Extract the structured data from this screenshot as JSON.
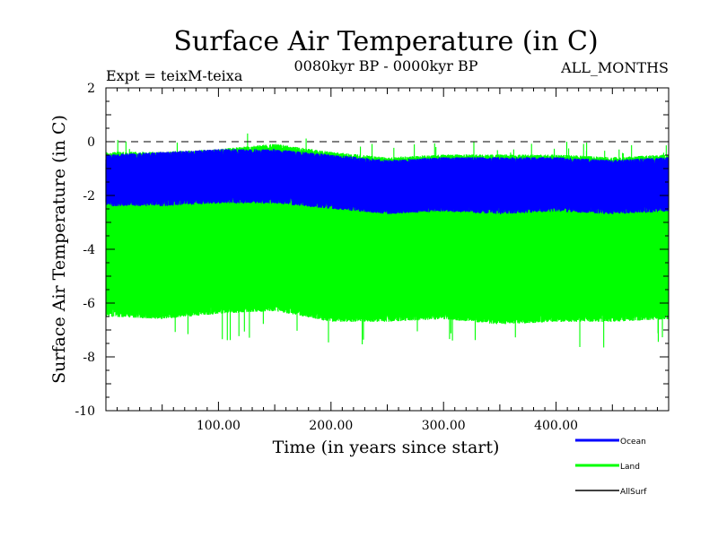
{
  "chart_data": {
    "type": "line",
    "title": "Surface Air Temperature (in C)",
    "subtitle_left": "Expt = teixM-teixa",
    "subtitle_center": "0080kyr BP - 0000kyr BP",
    "subtitle_right": "ALL_MONTHS",
    "xlabel": "Time (in years since start)",
    "ylabel": "Surface Air Temperature (in C)",
    "xlim": [
      0,
      500
    ],
    "ylim": [
      -10,
      2
    ],
    "x_ticks": [
      100,
      200,
      300,
      400
    ],
    "x_tick_labels": [
      "100.00",
      "200.00",
      "300.00",
      "400.00"
    ],
    "y_ticks": [
      -10,
      -8,
      -6,
      -4,
      -2,
      0,
      2
    ],
    "y_tick_labels": [
      "-10",
      "-8",
      "-6",
      "-4",
      "-2",
      "0",
      "2"
    ],
    "reference_line": {
      "y": 0,
      "style": "dashed",
      "color": "#000000"
    },
    "legend_placement": "bottom-right",
    "grid": false,
    "series": [
      {
        "name": "Land",
        "color": "#00ff00",
        "summary": {
          "x_range": [
            0,
            500
          ],
          "mean_envelope": [
            {
              "x": 0,
              "low": -6.2,
              "high": -0.6
            },
            {
              "x": 50,
              "low": -6.3,
              "high": -0.6
            },
            {
              "x": 100,
              "low": -6.1,
              "high": -0.5
            },
            {
              "x": 150,
              "low": -6.0,
              "high": -0.3
            },
            {
              "x": 200,
              "low": -6.4,
              "high": -0.6
            },
            {
              "x": 250,
              "low": -6.4,
              "high": -0.8
            },
            {
              "x": 300,
              "low": -6.3,
              "high": -0.7
            },
            {
              "x": 350,
              "low": -6.5,
              "high": -0.7
            },
            {
              "x": 400,
              "low": -6.4,
              "high": -0.7
            },
            {
              "x": 450,
              "low": -6.4,
              "high": -0.8
            },
            {
              "x": 500,
              "low": -6.3,
              "high": -0.7
            }
          ],
          "min": -8.1,
          "max": 0.4
        }
      },
      {
        "name": "Ocean",
        "color": "#0000ff",
        "summary": {
          "x_range": [
            0,
            500
          ],
          "mean_envelope": [
            {
              "x": 0,
              "low": -2.1,
              "high": -0.7
            },
            {
              "x": 50,
              "low": -2.1,
              "high": -0.6
            },
            {
              "x": 100,
              "low": -2.0,
              "high": -0.5
            },
            {
              "x": 150,
              "low": -2.0,
              "high": -0.5
            },
            {
              "x": 200,
              "low": -2.2,
              "high": -0.7
            },
            {
              "x": 250,
              "low": -2.4,
              "high": -0.9
            },
            {
              "x": 300,
              "low": -2.3,
              "high": -0.8
            },
            {
              "x": 350,
              "low": -2.4,
              "high": -0.8
            },
            {
              "x": 400,
              "low": -2.3,
              "high": -0.8
            },
            {
              "x": 450,
              "low": -2.4,
              "high": -0.9
            },
            {
              "x": 500,
              "low": -2.3,
              "high": -0.8
            }
          ]
        }
      },
      {
        "name": "AllSurf",
        "color": "#000000",
        "summary": {
          "x_range": [
            0,
            500
          ],
          "mean_envelope": [
            {
              "x": 0,
              "low": -2.5,
              "high": -1.0
            },
            {
              "x": 500,
              "low": -2.5,
              "high": -1.0
            }
          ]
        }
      }
    ],
    "legend": [
      {
        "name": "Ocean",
        "color": "#0000ff"
      },
      {
        "name": "Land",
        "color": "#00ff00"
      },
      {
        "name": "AllSurf",
        "color": "#000000"
      }
    ]
  }
}
